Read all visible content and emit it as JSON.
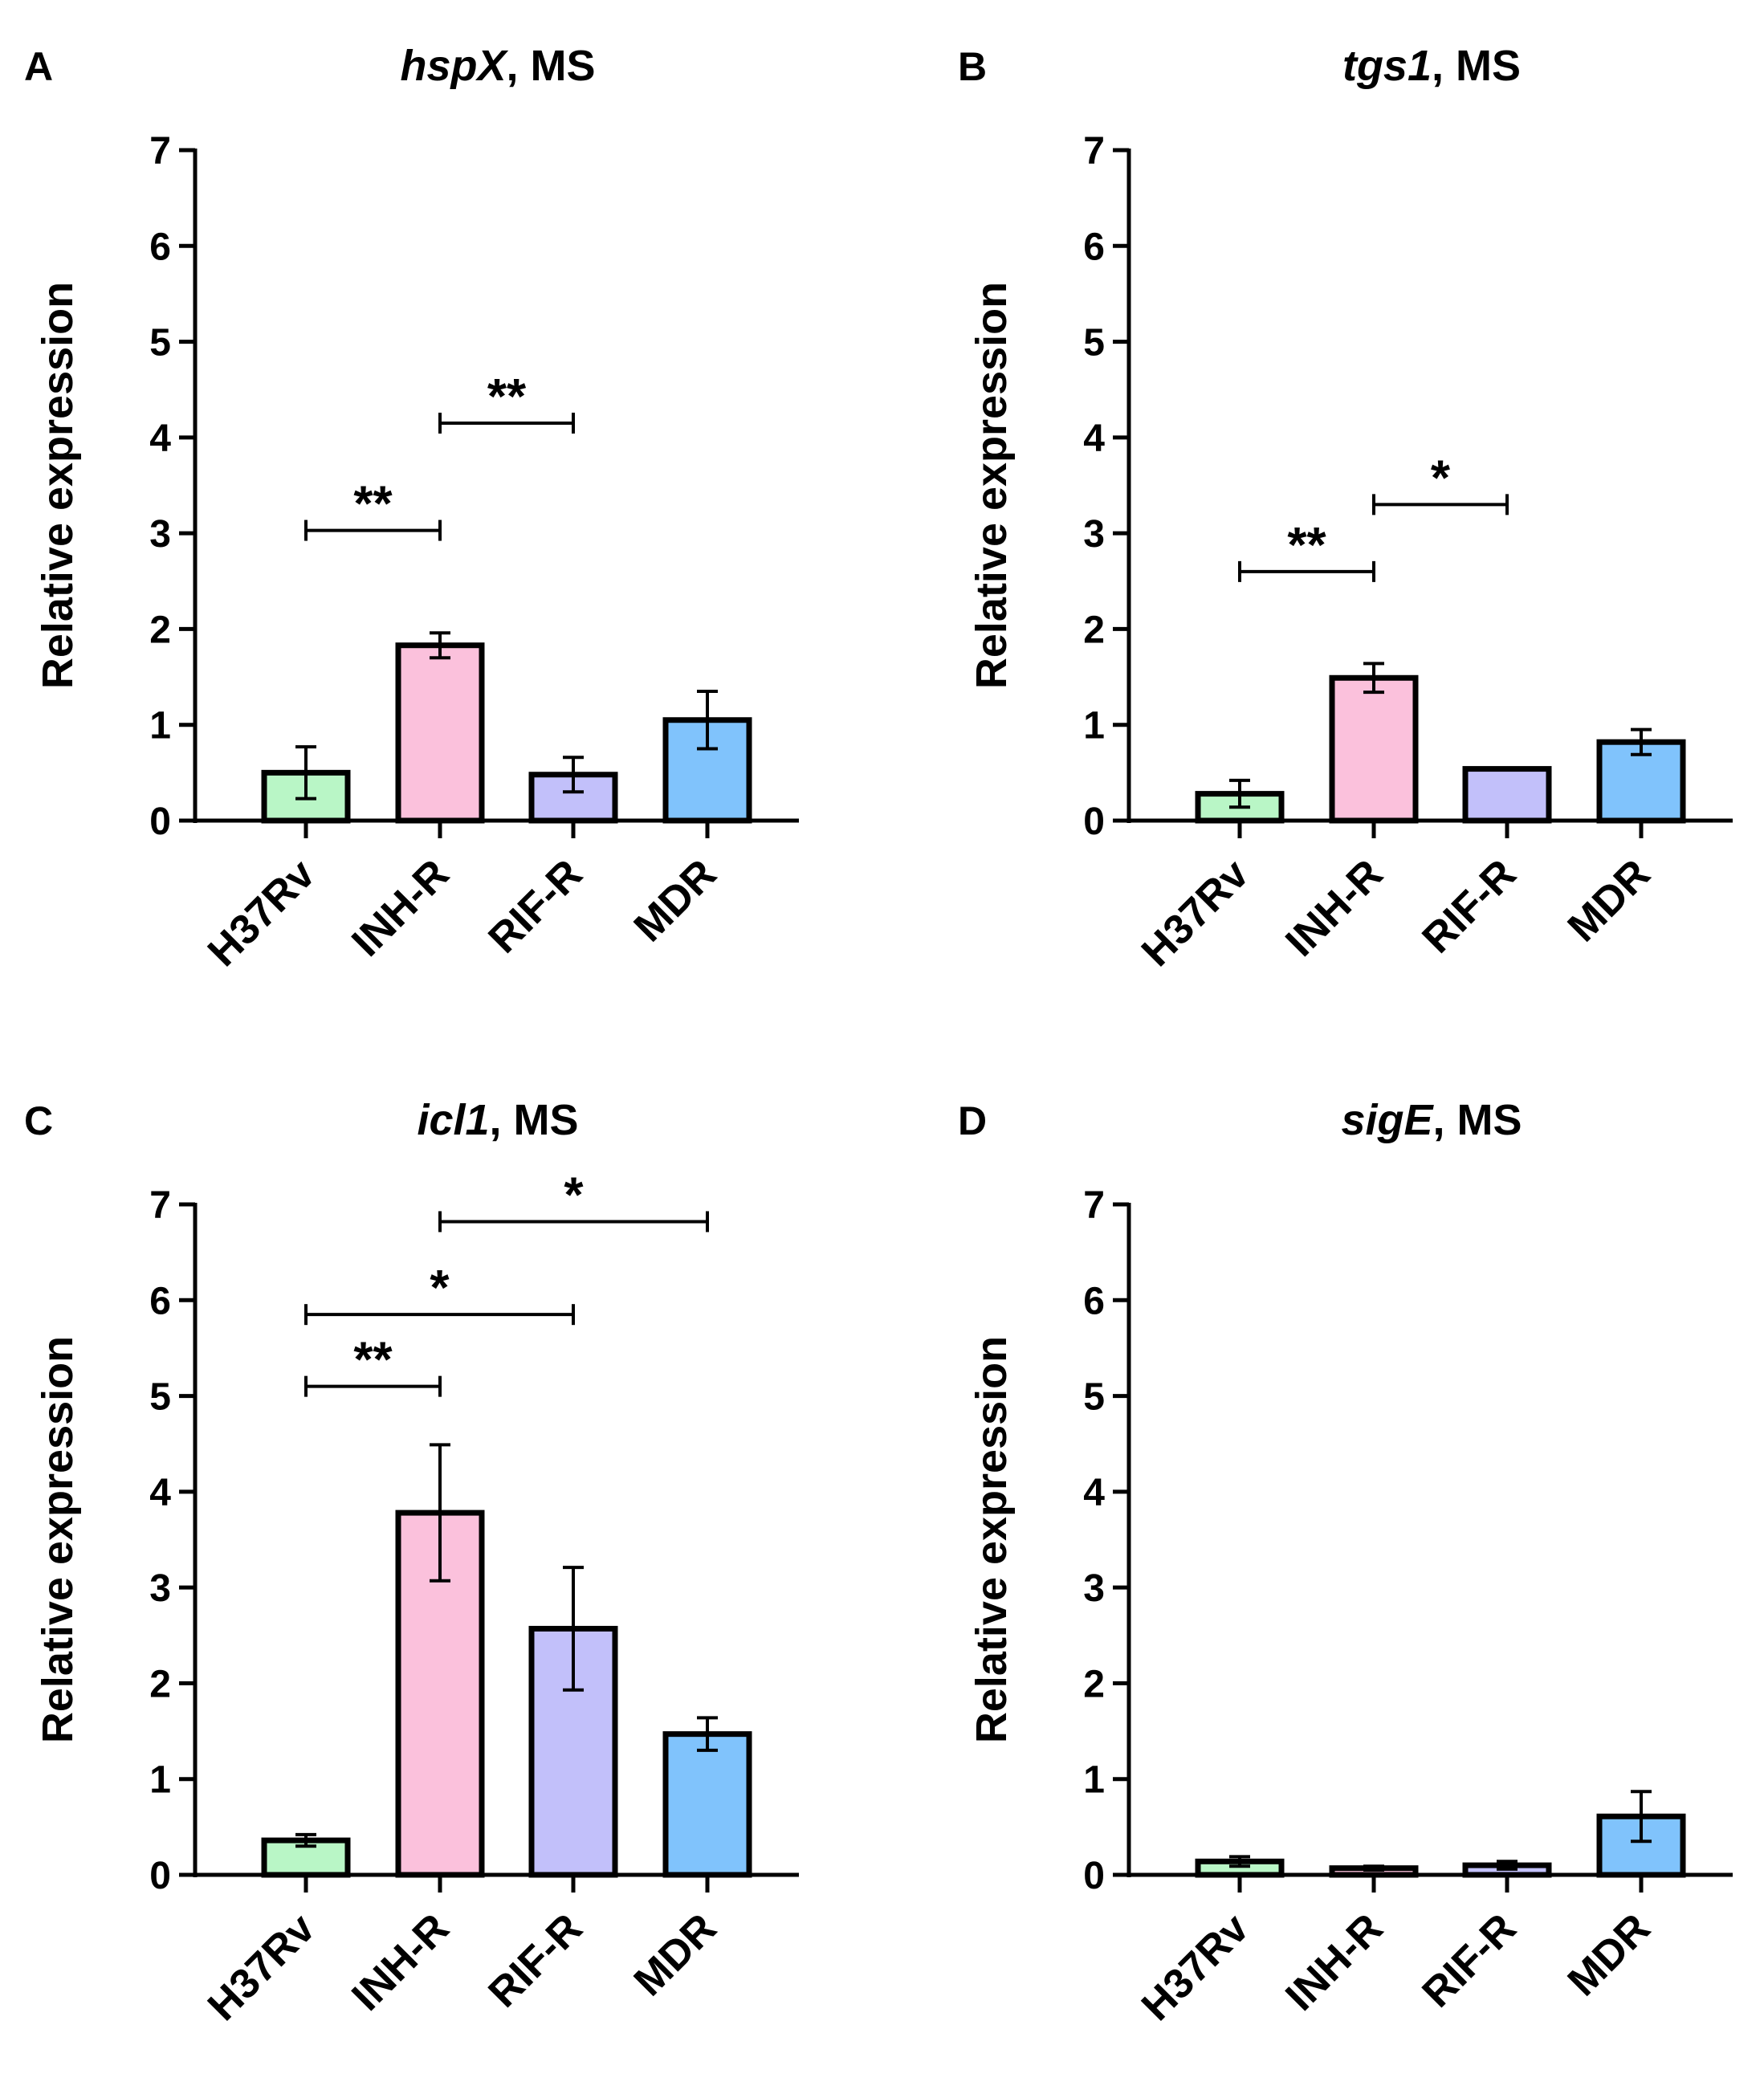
{
  "figure": {
    "ylabel": "Relative expression",
    "categories": [
      "H37Rv",
      "INH-R",
      "RIF-R",
      "MDR"
    ],
    "colors": [
      "#b9f6c6",
      "#fbc1dc",
      "#c2c0fa",
      "#80c3fc"
    ]
  },
  "chart_data": [
    {
      "panel": "A",
      "type": "bar",
      "title_gene": "hspX",
      "title_suffix": ", MS",
      "ylabel": "Relative expression",
      "categories": [
        "H37Rv",
        "INH-R",
        "RIF-R",
        "MDR"
      ],
      "values": [
        0.5,
        1.83,
        0.48,
        1.05
      ],
      "errors": [
        0.27,
        0.13,
        0.18,
        0.3
      ],
      "ylim": [
        0,
        7
      ],
      "yticks": [
        0,
        1,
        2,
        3,
        4,
        5,
        6,
        7
      ],
      "significance": [
        {
          "from": 0,
          "to": 1,
          "y": 3.03,
          "label": "**"
        },
        {
          "from": 1,
          "to": 2,
          "y": 4.15,
          "label": "**"
        }
      ]
    },
    {
      "panel": "B",
      "type": "bar",
      "title_gene": "tgs1",
      "title_suffix": ", MS",
      "ylabel": "Relative expression",
      "categories": [
        "H37Rv",
        "INH-R",
        "RIF-R",
        "MDR"
      ],
      "values": [
        0.28,
        1.49,
        0.54,
        0.82
      ],
      "errors": [
        0.14,
        0.15,
        0,
        0.13
      ],
      "ylim": [
        0,
        7
      ],
      "yticks": [
        0,
        1,
        2,
        3,
        4,
        5,
        6,
        7
      ],
      "significance": [
        {
          "from": 0,
          "to": 1,
          "y": 2.6,
          "label": "**"
        },
        {
          "from": 1,
          "to": 2,
          "y": 3.3,
          "label": "*"
        }
      ]
    },
    {
      "panel": "C",
      "type": "bar",
      "title_gene": "icl1",
      "title_suffix": ", MS",
      "ylabel": "Relative expression",
      "categories": [
        "H37Rv",
        "INH-R",
        "RIF-R",
        "MDR"
      ],
      "values": [
        0.36,
        3.78,
        2.57,
        1.47
      ],
      "errors": [
        0.06,
        0.71,
        0.64,
        0.17
      ],
      "ylim": [
        0,
        7
      ],
      "yticks": [
        0,
        1,
        2,
        3,
        4,
        5,
        6,
        7
      ],
      "significance": [
        {
          "from": 0,
          "to": 1,
          "y": 5.1,
          "label": "**"
        },
        {
          "from": 0,
          "to": 2,
          "y": 5.85,
          "label": "*"
        },
        {
          "from": 1,
          "to": 3,
          "y": 6.82,
          "label": "*"
        }
      ]
    },
    {
      "panel": "D",
      "type": "bar",
      "title_gene": "sigE",
      "title_suffix": ", MS",
      "ylabel": "Relative expression",
      "categories": [
        "H37Rv",
        "INH-R",
        "RIF-R",
        "MDR"
      ],
      "values": [
        0.14,
        0.07,
        0.1,
        0.61
      ],
      "errors": [
        0.05,
        0.02,
        0.04,
        0.26
      ],
      "ylim": [
        0,
        7
      ],
      "yticks": [
        0,
        1,
        2,
        3,
        4,
        5,
        6,
        7
      ],
      "significance": []
    }
  ]
}
